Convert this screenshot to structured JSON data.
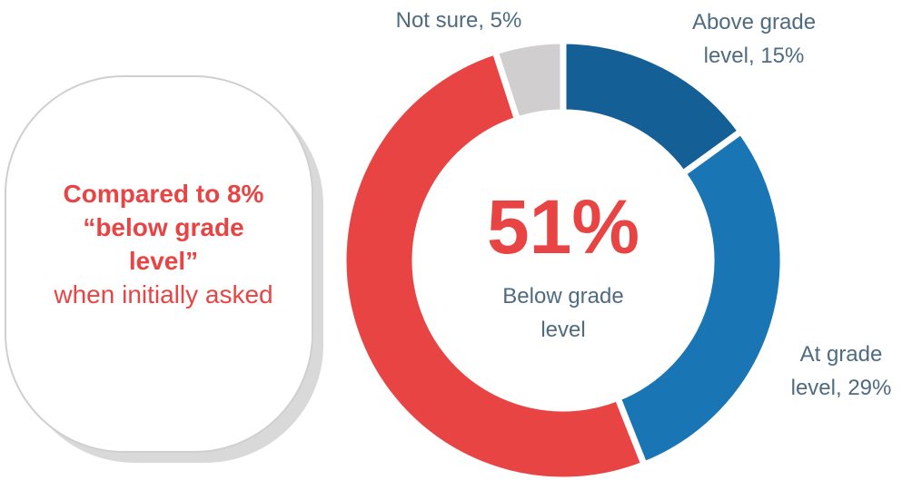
{
  "chart_data": {
    "type": "donut",
    "categories": [
      "Above grade level",
      "At grade level",
      "Below grade level",
      "Not sure"
    ],
    "values": [
      15,
      29,
      51,
      5
    ],
    "value_labels": [
      "Above grade level, 15%",
      "At grade level, 29%",
      "51%",
      "Not sure, 5%"
    ],
    "colors": [
      "#135f96",
      "#1a75b5",
      "#e84444",
      "#d0cece"
    ]
  },
  "callout": {
    "emphasis": "Compared to 8% “below grade level”",
    "text": "when initially asked"
  }
}
